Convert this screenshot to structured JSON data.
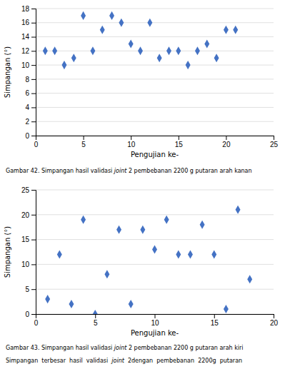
{
  "chart_data": [
    {
      "type": "scatter",
      "x": [
        1,
        2,
        3,
        4,
        5,
        6,
        7,
        8,
        9,
        10,
        11,
        12,
        13,
        14,
        15,
        16,
        17,
        18,
        19,
        20,
        21
      ],
      "y": [
        12,
        12,
        10,
        11,
        17,
        12,
        15,
        17,
        16,
        13,
        12,
        16,
        11,
        12,
        12,
        10,
        12,
        13,
        11,
        15,
        15
      ],
      "xlim": [
        0,
        25
      ],
      "ylim": [
        0,
        18
      ],
      "xticks": [
        0,
        5,
        10,
        15,
        20,
        25
      ],
      "yticks": [
        0,
        2,
        4,
        6,
        8,
        10,
        12,
        14,
        16,
        18
      ],
      "xlabel": "Pengujian ke-",
      "ylabel": "Simpangan (°)",
      "caption": [
        "Gambar 42. Simpangan hasil validasi ",
        "joint",
        " 2 pembebanan 2200 g putaran arah kanan"
      ],
      "color": "#4472C4",
      "marker": "diamond",
      "grid": true
    },
    {
      "type": "scatter",
      "x": [
        1,
        2,
        3,
        4,
        5,
        6,
        7,
        8,
        9,
        10,
        11,
        12,
        13,
        14,
        15,
        16,
        17,
        18
      ],
      "y": [
        3,
        12,
        2,
        19,
        0,
        8,
        17,
        2,
        17,
        13,
        19,
        12,
        12,
        18,
        12,
        1,
        21,
        7
      ],
      "xlim": [
        0,
        20
      ],
      "ylim": [
        0,
        25
      ],
      "xticks": [
        0,
        5,
        10,
        15,
        20
      ],
      "yticks": [
        0,
        5,
        10,
        15,
        20,
        25
      ],
      "xlabel": "Pengujian ke-",
      "ylabel": "Simpangan (°)",
      "caption": [
        "Gambar 43. Simpangan hasil validasi ",
        "joint",
        " 2 pembebanan 2200 g putaran arah kiri"
      ],
      "color": "#4472C4",
      "marker": "diamond",
      "grid": true
    }
  ],
  "annotations": [
    [
      "Simpangan  terbesar  hasil  validasi  ",
      "joint",
      "  2dengan  pembebanan  2200g  putaran"
    ]
  ]
}
